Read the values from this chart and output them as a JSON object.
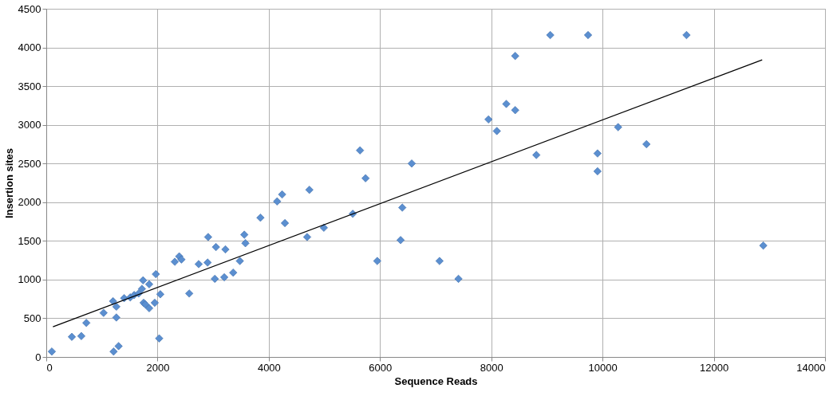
{
  "chart_data": {
    "type": "scatter",
    "xlabel": "Sequence Reads",
    "ylabel": "Insertion sites",
    "xlim": [
      0,
      14000
    ],
    "xticks": [
      0,
      2000,
      4000,
      6000,
      8000,
      10000,
      12000,
      14000
    ],
    "ylim": [
      0,
      4500
    ],
    "yticks": [
      0,
      500,
      1000,
      1500,
      2000,
      2500,
      3000,
      3500,
      4000,
      4500
    ],
    "grid": true,
    "series": [
      {
        "color": "#5b8fd0",
        "marker": "diamond",
        "x": [
          100,
          460,
          630,
          720,
          1030,
          1200,
          1260,
          1260,
          1210,
          1300,
          1400,
          1510,
          1580,
          1660,
          1720,
          1740,
          1850,
          1750,
          1780,
          1850,
          1950,
          1970,
          2030,
          2050,
          2570,
          2310,
          2390,
          2430,
          2740,
          2900,
          3030,
          3200,
          3360,
          3480,
          5640,
          6570,
          5740,
          4730,
          4240,
          4150,
          3850,
          4290,
          6400,
          5510,
          4990,
          2910,
          4690,
          6370,
          3560,
          3580,
          3050,
          3220,
          5950,
          7070,
          10280,
          10790,
          9910,
          9910,
          8810,
          8100,
          7950,
          7410,
          9060,
          9740,
          11510,
          8430,
          8270,
          8430,
          12890
        ],
        "values": [
          70,
          260,
          270,
          440,
          570,
          720,
          650,
          510,
          70,
          140,
          760,
          770,
          800,
          820,
          880,
          990,
          940,
          700,
          680,
          630,
          700,
          1070,
          240,
          810,
          820,
          1230,
          1300,
          1260,
          1200,
          1220,
          1010,
          1030,
          1090,
          1240,
          2670,
          2500,
          2310,
          2160,
          2100,
          2010,
          1800,
          1730,
          1930,
          1850,
          1670,
          1550,
          1550,
          1510,
          1580,
          1470,
          1420,
          1390,
          1240,
          1240,
          2970,
          2750,
          2630,
          2400,
          2610,
          2920,
          3070,
          1010,
          4160,
          4160,
          4160,
          3890,
          3270,
          3190,
          1440
        ]
      },
      {
        "type": "line",
        "color": "#000000",
        "marker": "none",
        "x": [
          120,
          12870
        ],
        "values": [
          390,
          3840
        ]
      }
    ]
  }
}
